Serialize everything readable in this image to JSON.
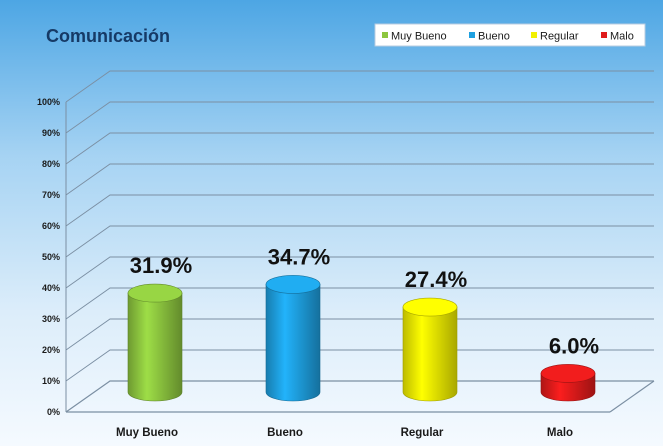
{
  "chart_data": {
    "type": "bar",
    "title": "Comunicación",
    "categories": [
      "Muy Bueno",
      "Bueno",
      "Regular",
      "Malo"
    ],
    "values": [
      31.9,
      34.7,
      27.4,
      6.0
    ],
    "value_labels": [
      "31.9%",
      "34.7%",
      "27.4%",
      "6.0%"
    ],
    "colors": [
      "#8dc63f",
      "#1ea0e0",
      "#f2f000",
      "#e01b1b"
    ],
    "y_ticks": [
      "0%",
      "10%",
      "20%",
      "30%",
      "40%",
      "50%",
      "60%",
      "70%",
      "80%",
      "90%",
      "100%"
    ],
    "ylim": [
      0,
      100
    ],
    "xlabel": "",
    "ylabel": "",
    "grid": true,
    "legend": {
      "position": "top-right",
      "entries": [
        "Muy Bueno",
        "Bueno",
        "Regular",
        "Malo"
      ]
    },
    "style": "3d-cylinder"
  }
}
